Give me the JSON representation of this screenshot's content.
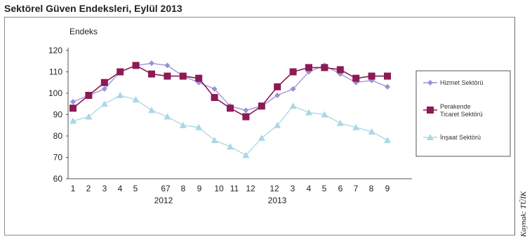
{
  "title": "Sektörel Güven Endeksleri, Eylül 2013",
  "source": "Kaynak: TÜİK",
  "chart_data": {
    "type": "line",
    "ylabel": "Endeks",
    "ylim": [
      60,
      120
    ],
    "yticks": [
      60,
      70,
      80,
      90,
      100,
      110,
      120
    ],
    "grid": false,
    "legend_placement": "right",
    "x_tick_labels": [
      "1",
      "2",
      "3",
      "4",
      "5",
      "6",
      "7",
      "8",
      "9",
      "10",
      "11",
      "12",
      "1",
      "2",
      "3",
      "4",
      "5",
      "6",
      "7",
      "8",
      "9"
    ],
    "x_tick_labels_printed": [
      "1",
      "2",
      "3",
      "4",
      "5",
      "67",
      "8",
      "9",
      "10",
      "11",
      "12",
      "12",
      "3",
      "4",
      "5",
      "6",
      "7",
      "8",
      "9"
    ],
    "year_labels": [
      "2012",
      "2013"
    ],
    "series": [
      {
        "name": "Hizmet Sektörü",
        "color": "#9b8fd6",
        "marker": "diamond",
        "values": [
          96,
          99,
          102,
          110,
          113,
          114,
          113,
          108,
          105,
          102,
          94,
          92,
          94,
          99,
          102,
          110,
          113,
          109,
          105,
          106,
          103
        ]
      },
      {
        "name": "Perakende Ticaret Sektörü",
        "color": "#8b1a55",
        "marker": "square",
        "values": [
          93,
          99,
          105,
          110,
          113,
          109,
          108,
          108,
          107,
          98,
          93,
          89,
          94,
          103,
          110,
          112,
          112,
          111,
          107,
          108,
          108
        ]
      },
      {
        "name": "İnşaat Sektörü",
        "color": "#a8d8e6",
        "marker": "triangle",
        "values": [
          87,
          89,
          95,
          99,
          97,
          92,
          89,
          85,
          84,
          78,
          75,
          71,
          79,
          85,
          94,
          91,
          90,
          86,
          84,
          82,
          78
        ]
      }
    ]
  }
}
